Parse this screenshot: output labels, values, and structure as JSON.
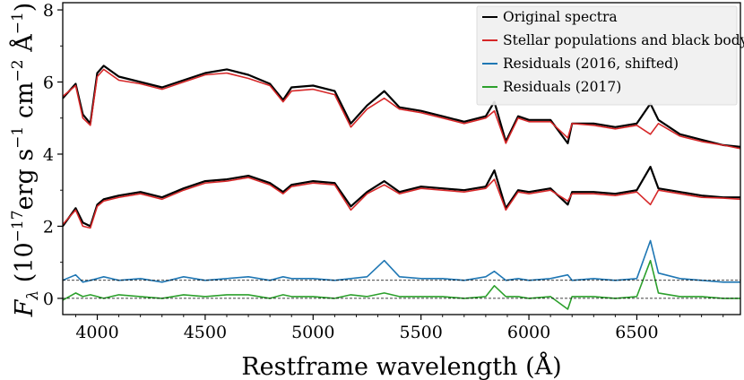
{
  "chart_data": {
    "type": "line",
    "title": "",
    "xlabel": "Restframe wavelength (Å)",
    "ylabel": "F_λ (10^−17 erg s^−1 cm^−2 Å^−1)",
    "ylabel_parts": {
      "f": "F",
      "lambda": "λ",
      "open": " (10",
      "exp1": "−17",
      "erg": "erg s",
      "exp2": "−1",
      "cm": " cm",
      "exp3": "−2",
      "ang": " Å",
      "exp4": "−1",
      "close": ")"
    },
    "xlim": [
      3840,
      6980
    ],
    "ylim": [
      -0.45,
      8.2
    ],
    "xticks": [
      4000,
      4500,
      5000,
      5500,
      6000,
      6500
    ],
    "xtick_labels": [
      "4000",
      "4500",
      "5000",
      "5500",
      "6000",
      "6500"
    ],
    "yticks": [
      0,
      2,
      4,
      6,
      8
    ],
    "ytick_labels": [
      "0",
      "2",
      "4",
      "6",
      "8"
    ],
    "grid": false,
    "legend_position": "top-right",
    "reference_lines": [
      0.0,
      0.5
    ],
    "legend": [
      {
        "label": "Original spectra",
        "color": "#000000"
      },
      {
        "label": "Stellar populations and black body",
        "color": "#d62728"
      },
      {
        "label": "Residuals (2016, shifted)",
        "color": "#1f77b4"
      },
      {
        "label": "Residuals (2017)",
        "color": "#2ca02c"
      }
    ],
    "x": [
      3840,
      3900,
      3933,
      3968,
      4000,
      4030,
      4100,
      4200,
      4300,
      4400,
      4500,
      4600,
      4700,
      4800,
      4861,
      4900,
      5000,
      5100,
      5175,
      5250,
      5330,
      5400,
      5500,
      5600,
      5700,
      5800,
      5840,
      5893,
      5950,
      6000,
      6100,
      6180,
      6200,
      6300,
      6400,
      6500,
      6563,
      6600,
      6700,
      6800,
      6900,
      6980
    ],
    "series": [
      {
        "name": "Original spectra (2016)",
        "color": "#000000",
        "values": [
          5.55,
          5.95,
          5.1,
          4.85,
          6.25,
          6.45,
          6.15,
          6.0,
          5.85,
          6.05,
          6.25,
          6.35,
          6.2,
          5.95,
          5.5,
          5.85,
          5.9,
          5.75,
          4.85,
          5.35,
          5.75,
          5.3,
          5.2,
          5.05,
          4.9,
          5.05,
          5.45,
          4.35,
          5.05,
          4.95,
          4.95,
          4.3,
          4.85,
          4.85,
          4.75,
          4.85,
          5.4,
          4.95,
          4.55,
          4.4,
          4.25,
          4.2
        ]
      },
      {
        "name": "Stellar populations and black body (2016)",
        "color": "#d62728",
        "values": [
          5.6,
          5.9,
          5.0,
          4.8,
          6.15,
          6.35,
          6.05,
          5.95,
          5.8,
          6.0,
          6.2,
          6.25,
          6.1,
          5.9,
          5.45,
          5.75,
          5.8,
          5.65,
          4.75,
          5.25,
          5.55,
          5.25,
          5.15,
          5.0,
          4.85,
          5.0,
          5.2,
          4.3,
          5.0,
          4.9,
          4.9,
          4.45,
          4.85,
          4.8,
          4.7,
          4.8,
          4.55,
          4.85,
          4.5,
          4.35,
          4.25,
          4.15
        ]
      },
      {
        "name": "Original spectra (2017)",
        "color": "#000000",
        "values": [
          2.0,
          2.5,
          2.1,
          2.0,
          2.6,
          2.75,
          2.85,
          2.95,
          2.8,
          3.05,
          3.25,
          3.3,
          3.4,
          3.2,
          2.95,
          3.15,
          3.25,
          3.2,
          2.55,
          2.95,
          3.25,
          2.95,
          3.1,
          3.05,
          3.0,
          3.1,
          3.55,
          2.5,
          3.0,
          2.95,
          3.05,
          2.6,
          2.95,
          2.95,
          2.9,
          3.0,
          3.65,
          3.05,
          2.95,
          2.85,
          2.8,
          2.8
        ]
      },
      {
        "name": "Stellar populations and black body (2017)",
        "color": "#d62728",
        "values": [
          2.05,
          2.45,
          2.0,
          1.95,
          2.55,
          2.7,
          2.8,
          2.9,
          2.75,
          3.0,
          3.2,
          3.25,
          3.35,
          3.15,
          2.9,
          3.1,
          3.2,
          3.15,
          2.45,
          2.9,
          3.15,
          2.9,
          3.05,
          3.0,
          2.95,
          3.05,
          3.3,
          2.45,
          2.95,
          2.9,
          3.0,
          2.7,
          2.9,
          2.9,
          2.85,
          2.95,
          2.6,
          3.0,
          2.9,
          2.8,
          2.78,
          2.75
        ]
      },
      {
        "name": "Residuals (2016, shifted)",
        "color": "#1f77b4",
        "values": [
          0.5,
          0.65,
          0.45,
          0.5,
          0.55,
          0.6,
          0.5,
          0.55,
          0.45,
          0.6,
          0.5,
          0.55,
          0.6,
          0.5,
          0.6,
          0.55,
          0.55,
          0.5,
          0.55,
          0.6,
          1.05,
          0.6,
          0.55,
          0.55,
          0.5,
          0.6,
          0.75,
          0.5,
          0.55,
          0.5,
          0.55,
          0.65,
          0.5,
          0.55,
          0.5,
          0.55,
          1.6,
          0.7,
          0.55,
          0.5,
          0.45,
          0.45
        ]
      },
      {
        "name": "Residuals (2017)",
        "color": "#2ca02c",
        "values": [
          -0.05,
          0.15,
          0.05,
          0.1,
          0.05,
          0.0,
          0.1,
          0.05,
          0.0,
          0.1,
          0.05,
          0.1,
          0.1,
          0.0,
          0.1,
          0.05,
          0.05,
          0.0,
          0.1,
          0.05,
          0.15,
          0.05,
          0.05,
          0.05,
          0.0,
          0.05,
          0.35,
          0.05,
          0.05,
          0.0,
          0.05,
          -0.3,
          0.05,
          0.05,
          0.0,
          0.05,
          1.05,
          0.15,
          0.05,
          0.05,
          0.0,
          0.0
        ]
      }
    ]
  }
}
